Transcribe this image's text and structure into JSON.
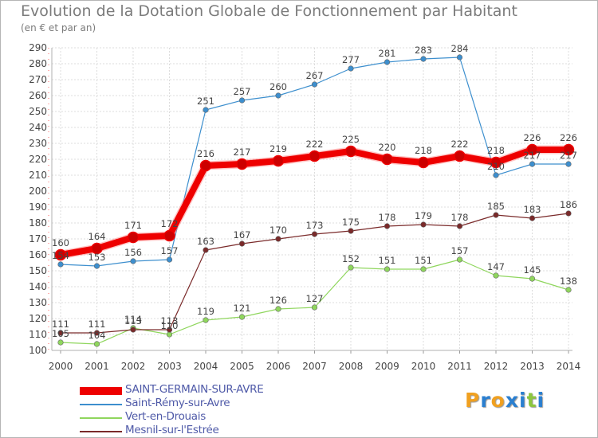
{
  "title": "Evolution de la Dotation Globale de Fonctionnement par Habitant",
  "subtitle": "(en € et par an)",
  "logo": {
    "text": "Proxiti",
    "letters": [
      "P",
      "r",
      "o",
      "x",
      "i",
      "t",
      "i"
    ],
    "colors": [
      "#f0a020",
      "#2a7fd0",
      "#f0a020",
      "#2a7fd0",
      "#2a7fd0",
      "#8dc63f",
      "#2a7fd0"
    ]
  },
  "chart_data": {
    "type": "line",
    "title": "Evolution de la Dotation Globale de Fonctionnement par Habitant",
    "ylabel": "(en € et par an)",
    "xlabel": "",
    "x": [
      "2000",
      "2001",
      "2002",
      "2003",
      "2004",
      "2005",
      "2006",
      "2007",
      "2008",
      "2009",
      "2010",
      "2011",
      "2012",
      "2013",
      "2014"
    ],
    "ylim": [
      100,
      290
    ],
    "yticks": [
      100,
      110,
      120,
      130,
      140,
      150,
      160,
      170,
      180,
      190,
      200,
      210,
      220,
      230,
      240,
      250,
      260,
      270,
      280,
      290
    ],
    "grid": true,
    "legend": "bottom-left",
    "series": [
      {
        "name": "Saint-Rémy-sur-Avre",
        "color": "#3d8fce",
        "width": 1.2,
        "values": [
          154,
          153,
          156,
          157,
          251,
          257,
          260,
          267,
          277,
          281,
          283,
          284,
          210,
          217,
          217
        ]
      },
      {
        "name": "Vert-en-Drouais",
        "color": "#8fd65d",
        "width": 1.2,
        "values": [
          105,
          104,
          114,
          110,
          119,
          121,
          126,
          127,
          152,
          151,
          151,
          157,
          147,
          145,
          138
        ]
      },
      {
        "name": "Mesnil-sur-l'Estrée",
        "color": "#7a2a2a",
        "width": 1.2,
        "values": [
          111,
          111,
          113,
          113,
          163,
          167,
          170,
          173,
          175,
          178,
          179,
          178,
          185,
          183,
          186
        ]
      },
      {
        "name": "SAINT-GERMAIN-SUR-AVRE",
        "color": "#ee0000",
        "width": 8,
        "values": [
          160,
          164,
          171,
          172,
          216,
          217,
          219,
          222,
          225,
          220,
          218,
          222,
          218,
          226,
          226
        ]
      }
    ],
    "legend_order": [
      "SAINT-GERMAIN-SUR-AVRE",
      "Saint-Rémy-sur-Avre",
      "Vert-en-Drouais",
      "Mesnil-sur-l'Estrée"
    ]
  }
}
